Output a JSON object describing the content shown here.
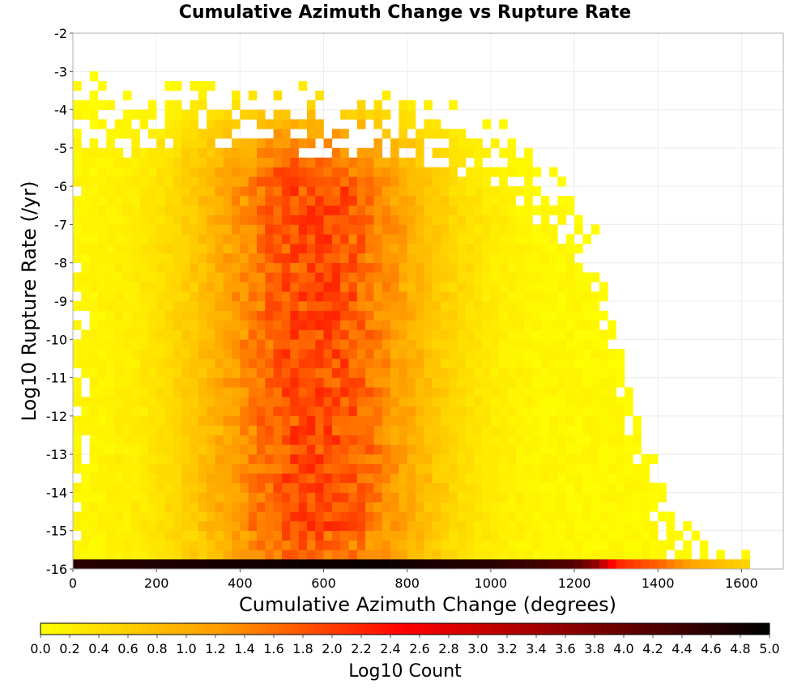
{
  "chart_data": {
    "type": "heatmap",
    "title": "Cumulative Azimuth Change vs Rupture Rate",
    "xlabel": "Cumulative Azimuth Change (degrees)",
    "ylabel": "Log10 Rupture Rate (/yr)",
    "xlim": [
      0,
      1700
    ],
    "ylim": [
      -16,
      -2
    ],
    "x_ticks": [
      0,
      200,
      400,
      600,
      800,
      1000,
      1200,
      1400,
      1600
    ],
    "y_ticks": [
      -2,
      -3,
      -4,
      -5,
      -6,
      -7,
      -8,
      -9,
      -10,
      -11,
      -12,
      -13,
      -14,
      -15,
      -16
    ],
    "grid": true,
    "bin": {
      "x_width": 20,
      "y_height": 0.25
    },
    "colorbar": {
      "label": "Log10 Count",
      "range": [
        0.0,
        5.0
      ],
      "ticks": [
        "0.0",
        "0.2",
        "0.4",
        "0.6",
        "0.8",
        "1.0",
        "1.2",
        "1.4",
        "1.6",
        "1.8",
        "2.0",
        "2.2",
        "2.4",
        "2.6",
        "2.8",
        "3.0",
        "3.2",
        "3.4",
        "3.6",
        "3.8",
        "4.0",
        "4.2",
        "4.4",
        "4.6",
        "4.8",
        "5.0"
      ],
      "colors": [
        "#ffff00",
        "#ff9900",
        "#ff0000",
        "#800000",
        "#000000"
      ]
    },
    "density_model": {
      "y_min_populated": -16,
      "upper_edge": [
        [
          0,
          -3.0
        ],
        [
          20,
          -3.5
        ],
        [
          60,
          -3.8
        ],
        [
          100,
          -4.0
        ],
        [
          200,
          -3.9
        ],
        [
          300,
          -3.6
        ],
        [
          400,
          -4.0
        ],
        [
          500,
          -3.8
        ],
        [
          600,
          -4.1
        ],
        [
          700,
          -4.0
        ],
        [
          800,
          -4.2
        ],
        [
          900,
          -4.4
        ],
        [
          1000,
          -4.8
        ],
        [
          1050,
          -5.0
        ],
        [
          1100,
          -5.6
        ],
        [
          1150,
          -6.0
        ],
        [
          1200,
          -6.5
        ],
        [
          1250,
          -7.5
        ],
        [
          1300,
          -10.0
        ],
        [
          1350,
          -12.0
        ],
        [
          1400,
          -14.0
        ],
        [
          1500,
          -15.9
        ],
        [
          1620,
          -15.9
        ]
      ],
      "peak_region": {
        "x_center": 580,
        "x_spread": 260,
        "y_low": -15.0,
        "y_high": -5.0
      },
      "peak_log_count": 2.0,
      "bottom_row": {
        "y": -16,
        "profile": [
          [
            0,
            4.6
          ],
          [
            400,
            4.8
          ],
          [
            700,
            4.9
          ],
          [
            1000,
            4.6
          ],
          [
            1200,
            4.2
          ],
          [
            1250,
            3.6
          ],
          [
            1300,
            2.2
          ],
          [
            1400,
            1.7
          ],
          [
            1500,
            1.0
          ],
          [
            1620,
            0.5
          ]
        ]
      }
    }
  }
}
